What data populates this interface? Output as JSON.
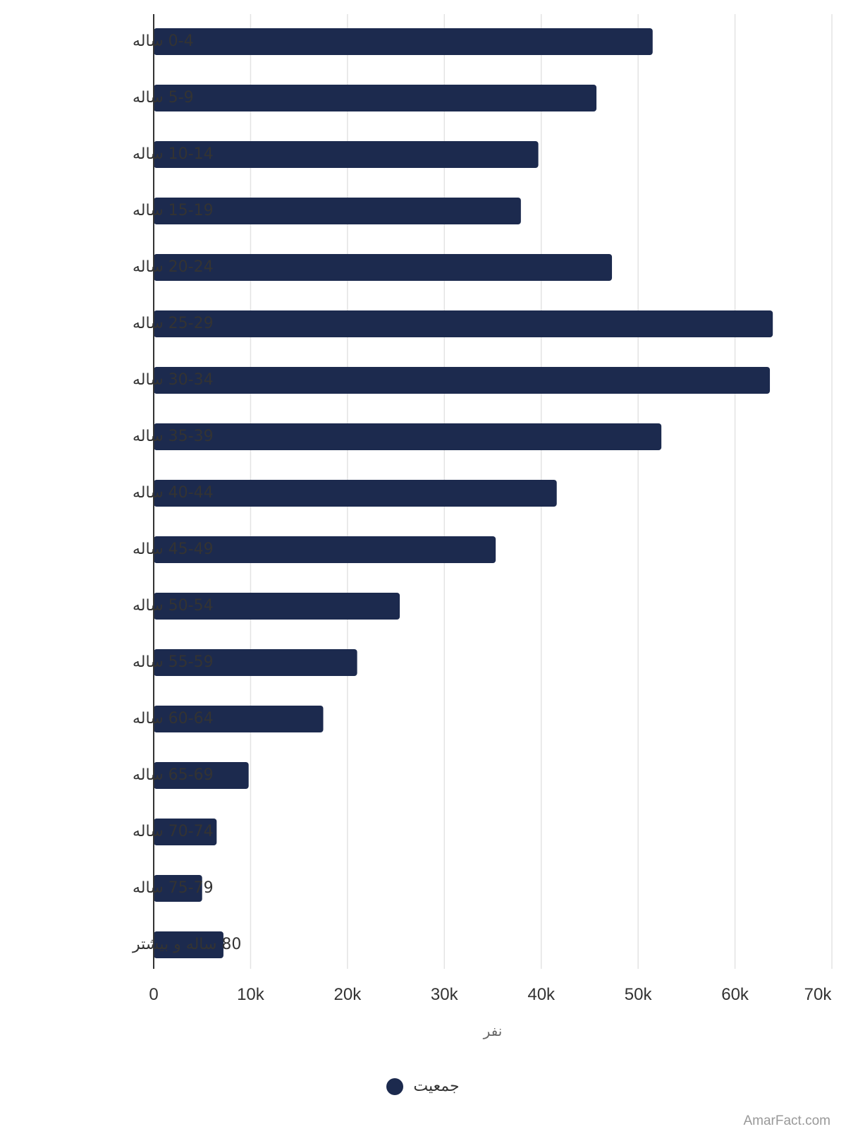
{
  "chart_data": {
    "type": "bar",
    "orientation": "horizontal",
    "categories": [
      "0-4 ساله",
      "5-9 ساله",
      "10-14 ساله",
      "15-19 ساله",
      "20-24 ساله",
      "25-29 ساله",
      "30-34 ساله",
      "35-39 ساله",
      "40-44 ساله",
      "45-49 ساله",
      "50-54 ساله",
      "55-59 ساله",
      "60-64 ساله",
      "65-69 ساله",
      "70-74 ساله",
      "75-79 ساله",
      "80 ساله و بیشتر"
    ],
    "series": [
      {
        "name": "جمعیت",
        "color": "#1c2a4e",
        "values": [
          51500,
          45700,
          39700,
          37900,
          47300,
          63900,
          63600,
          52400,
          41600,
          35300,
          25400,
          21000,
          17500,
          9800,
          6500,
          5000,
          7200
        ]
      }
    ],
    "xlabel": "نفر",
    "xlim": [
      0,
      70000
    ],
    "xticks": [
      0,
      10000,
      20000,
      30000,
      40000,
      50000,
      60000,
      70000
    ],
    "xtick_labels": [
      "0",
      "10k",
      "20k",
      "30k",
      "40k",
      "50k",
      "60k",
      "70k"
    ],
    "grid": "vertical",
    "legend_position": "bottom-center"
  },
  "watermark": "AmarFact.com"
}
